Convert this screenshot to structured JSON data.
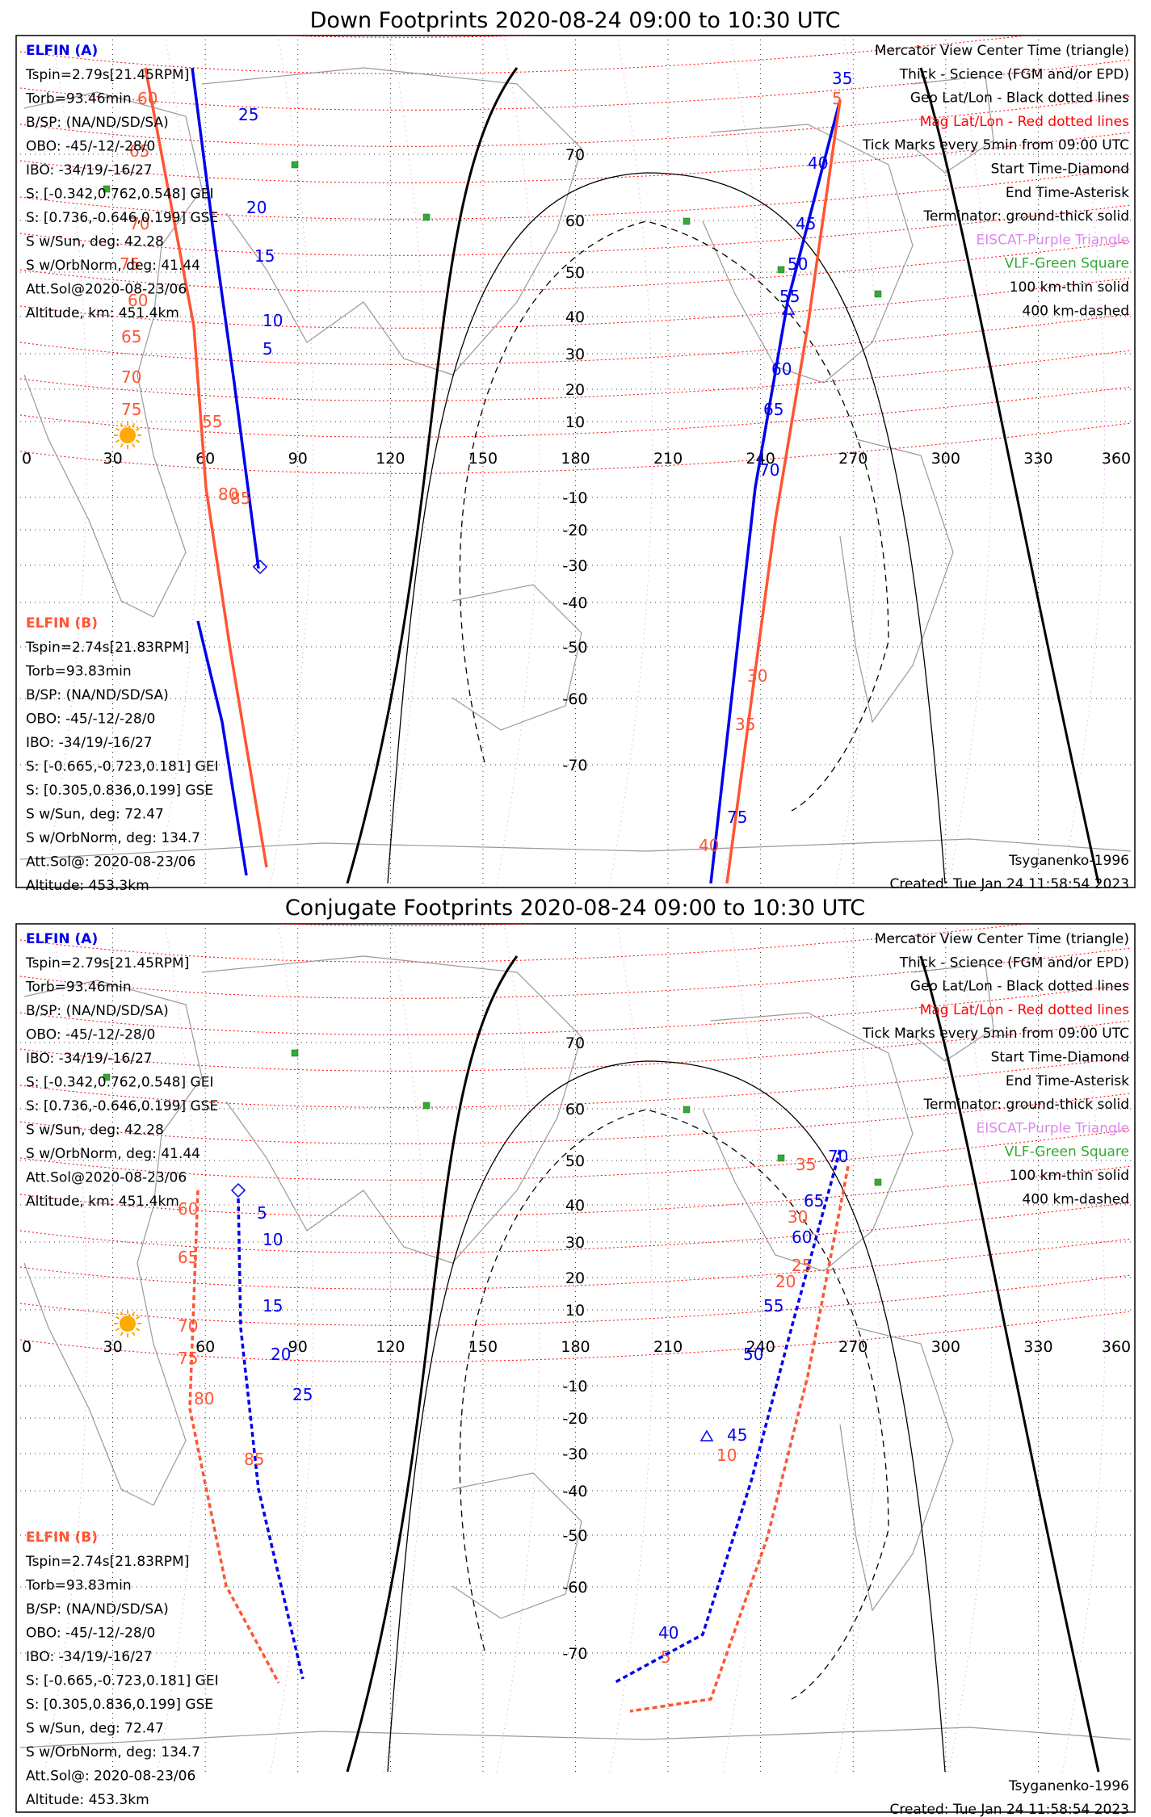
{
  "panels": [
    {
      "title": "Down Footprints 2020-08-24 09:00 to 10:30 UTC",
      "lon_ticks": [
        "0",
        "30",
        "60",
        "90",
        "120",
        "150",
        "180",
        "210",
        "240",
        "270",
        "300",
        "330",
        "360"
      ],
      "lat_ticks": [
        "70",
        "60",
        "50",
        "40",
        "30",
        "20",
        "10",
        "-10",
        "-20",
        "-30",
        "-40",
        "-50",
        "-60",
        "-70"
      ],
      "elfin_a": {
        "name": "ELFIN (A)",
        "lines": [
          "Tspin=2.79s[21.45RPM]",
          "Torb=93.46min",
          "B/SP: (NA/ND/SD/SA)",
          "OBO: -45/-12/-28/0",
          "IBO: -34/19/-16/27",
          "S: [-0.342,0.762,0.548] GEI",
          "S: [0.736,-0.646,0.199] GSE",
          "S w/Sun, deg: 42.28",
          "S w/OrbNorm, deg: 41.44",
          "Att.Sol@2020-08-23/06",
          "Altitude, km: 451.4km"
        ]
      },
      "elfin_b": {
        "name": "ELFIN (B)",
        "lines": [
          "Tspin=2.74s[21.83RPM]",
          "Torb=93.83min",
          "B/SP: (NA/ND/SD/SA)",
          "OBO: -45/-12/-28/0",
          "IBO: -34/19/-16/27",
          "S: [-0.665,-0.723,0.181] GEI",
          "S: [0.305,0.836,0.199] GSE",
          "S w/Sun, deg: 72.47",
          "S w/OrbNorm, deg: 134.7",
          "Att.Sol@: 2020-08-23/06",
          "Altitude: 453.3km"
        ]
      },
      "legend": [
        {
          "text": "Mercator View Center Time (triangle)",
          "color": "#000000"
        },
        {
          "text": "Thick - Science (FGM and/or EPD)",
          "color": "#000000"
        },
        {
          "text": "Geo Lat/Lon - Black dotted lines",
          "color": "#000000"
        },
        {
          "text": "Mag Lat/Lon - Red dotted lines",
          "color": "#ff0000"
        },
        {
          "text": "Tick Marks every 5min from 09:00 UTC",
          "color": "#000000"
        },
        {
          "text": "Start Time-Diamond",
          "color": "#000000"
        },
        {
          "text": "End Time-Asterisk",
          "color": "#000000"
        },
        {
          "text": "Terminator: ground-thick solid",
          "color": "#000000"
        },
        {
          "text": "EISCAT-Purple Triangle",
          "color": "#dd88ee"
        },
        {
          "text": "VLF-Green Square",
          "color": "#33aa33"
        },
        {
          "text": "100 km-thin solid",
          "color": "#000000"
        },
        {
          "text": "400 km-dashed",
          "color": "#000000"
        }
      ],
      "model": "Tsyganenko-1996",
      "created": "Created: Tue Jan 24 11:58:54 2023"
    },
    {
      "title": "Conjugate Footprints 2020-08-24 09:00 to 10:30 UTC",
      "lon_ticks": [
        "0",
        "30",
        "60",
        "90",
        "120",
        "150",
        "180",
        "210",
        "240",
        "270",
        "300",
        "330",
        "360"
      ],
      "lat_ticks": [
        "70",
        "60",
        "50",
        "40",
        "30",
        "20",
        "10",
        "-10",
        "-20",
        "-30",
        "-40",
        "-50",
        "-60",
        "-70"
      ],
      "elfin_a": {
        "name": "ELFIN (A)",
        "lines": [
          "Tspin=2.79s[21.45RPM]",
          "Torb=93.46min",
          "B/SP: (NA/ND/SD/SA)",
          "OBO: -45/-12/-28/0",
          "IBO: -34/19/-16/27",
          "S: [-0.342,0.762,0.548] GEI",
          "S: [0.736,-0.646,0.199] GSE",
          "S w/Sun, deg: 42.28",
          "S w/OrbNorm, deg: 41.44",
          "Att.Sol@2020-08-23/06",
          "Altitude, km: 451.4km"
        ]
      },
      "elfin_b": {
        "name": "ELFIN (B)",
        "lines": [
          "Tspin=2.74s[21.83RPM]",
          "Torb=93.83min",
          "B/SP: (NA/ND/SD/SA)",
          "OBO: -45/-12/-28/0",
          "IBO: -34/19/-16/27",
          "S: [-0.665,-0.723,0.181] GEI",
          "S: [0.305,0.836,0.199] GSE",
          "S w/Sun, deg: 72.47",
          "S w/OrbNorm, deg: 134.7",
          "Att.Sol@: 2020-08-23/06",
          "Altitude: 453.3km"
        ]
      },
      "legend": [
        {
          "text": "Mercator View Center Time (triangle)",
          "color": "#000000"
        },
        {
          "text": "Thick - Science (FGM and/or EPD)",
          "color": "#000000"
        },
        {
          "text": "Geo Lat/Lon - Black dotted lines",
          "color": "#000000"
        },
        {
          "text": "Mag Lat/Lon - Red dotted lines",
          "color": "#ff0000"
        },
        {
          "text": "Tick Marks every 5min from 09:00 UTC",
          "color": "#000000"
        },
        {
          "text": "Start Time-Diamond",
          "color": "#000000"
        },
        {
          "text": "End Time-Asterisk",
          "color": "#000000"
        },
        {
          "text": "Terminator: ground-thick solid",
          "color": "#000000"
        },
        {
          "text": "EISCAT-Purple Triangle",
          "color": "#dd88ee"
        },
        {
          "text": "VLF-Green Square",
          "color": "#33aa33"
        },
        {
          "text": "100 km-thin solid",
          "color": "#000000"
        },
        {
          "text": "400 km-dashed",
          "color": "#000000"
        }
      ],
      "model": "Tsyganenko-1996",
      "created": "Created: Tue Jan 24 11:58:54 2023"
    }
  ],
  "track_labels": {
    "down_a": [
      "35",
      "40",
      "45",
      "50",
      "55",
      "60",
      "65",
      "70",
      "75",
      "25",
      "20",
      "15",
      "10",
      "5"
    ],
    "down_b": [
      "5",
      "60",
      "65",
      "70",
      "75",
      "60",
      "65",
      "70",
      "75",
      "55",
      "80",
      "85",
      "30",
      "35",
      "40"
    ],
    "conj_a": [
      "5",
      "10",
      "15",
      "20",
      "25",
      "40",
      "45",
      "50",
      "55",
      "60",
      "65",
      "70"
    ],
    "conj_b": [
      "60",
      "65",
      "70",
      "75",
      "80",
      "85",
      "5",
      "10",
      "20",
      "25",
      "30",
      "35"
    ]
  },
  "colors": {
    "elfin_a": "#0000ee",
    "elfin_b": "#ff5533",
    "mag_grid": "#ff0000",
    "geo_grid": "#000000",
    "eiscat": "#dd88ee",
    "vlf": "#33aa33",
    "sun": "#ffaa00",
    "coast": "#999999"
  }
}
